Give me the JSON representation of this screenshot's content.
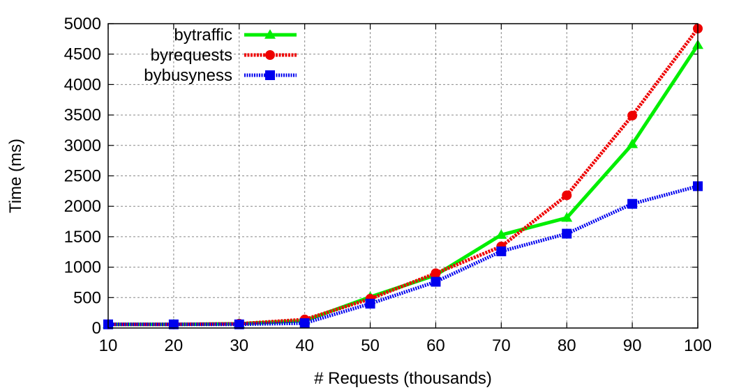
{
  "chart_data": {
    "type": "line",
    "xlabel": "# Requests (thousands)",
    "ylabel": "Time (ms)",
    "x": [
      10,
      20,
      30,
      40,
      50,
      60,
      70,
      80,
      90,
      100
    ],
    "xlim": [
      10,
      100
    ],
    "ylim": [
      0,
      5000
    ],
    "xticks": [
      10,
      20,
      30,
      40,
      50,
      60,
      70,
      80,
      90,
      100
    ],
    "yticks": [
      0,
      500,
      1000,
      1500,
      2000,
      2500,
      3000,
      3500,
      4000,
      4500,
      5000
    ],
    "grid": true,
    "legend_position": "top-left",
    "series": [
      {
        "name": "bytraffic",
        "color": "#00ee00",
        "marker": "triangle",
        "values": [
          60,
          60,
          70,
          120,
          510,
          870,
          1530,
          1810,
          3020,
          4650
        ]
      },
      {
        "name": "byrequests",
        "color": "#ee0000",
        "marker": "circle",
        "values": [
          60,
          60,
          70,
          140,
          480,
          900,
          1340,
          2180,
          3490,
          4920
        ]
      },
      {
        "name": "bybusyness",
        "color": "#0000ee",
        "marker": "square",
        "values": [
          60,
          60,
          60,
          80,
          400,
          760,
          1260,
          1550,
          2040,
          2330
        ]
      }
    ]
  }
}
